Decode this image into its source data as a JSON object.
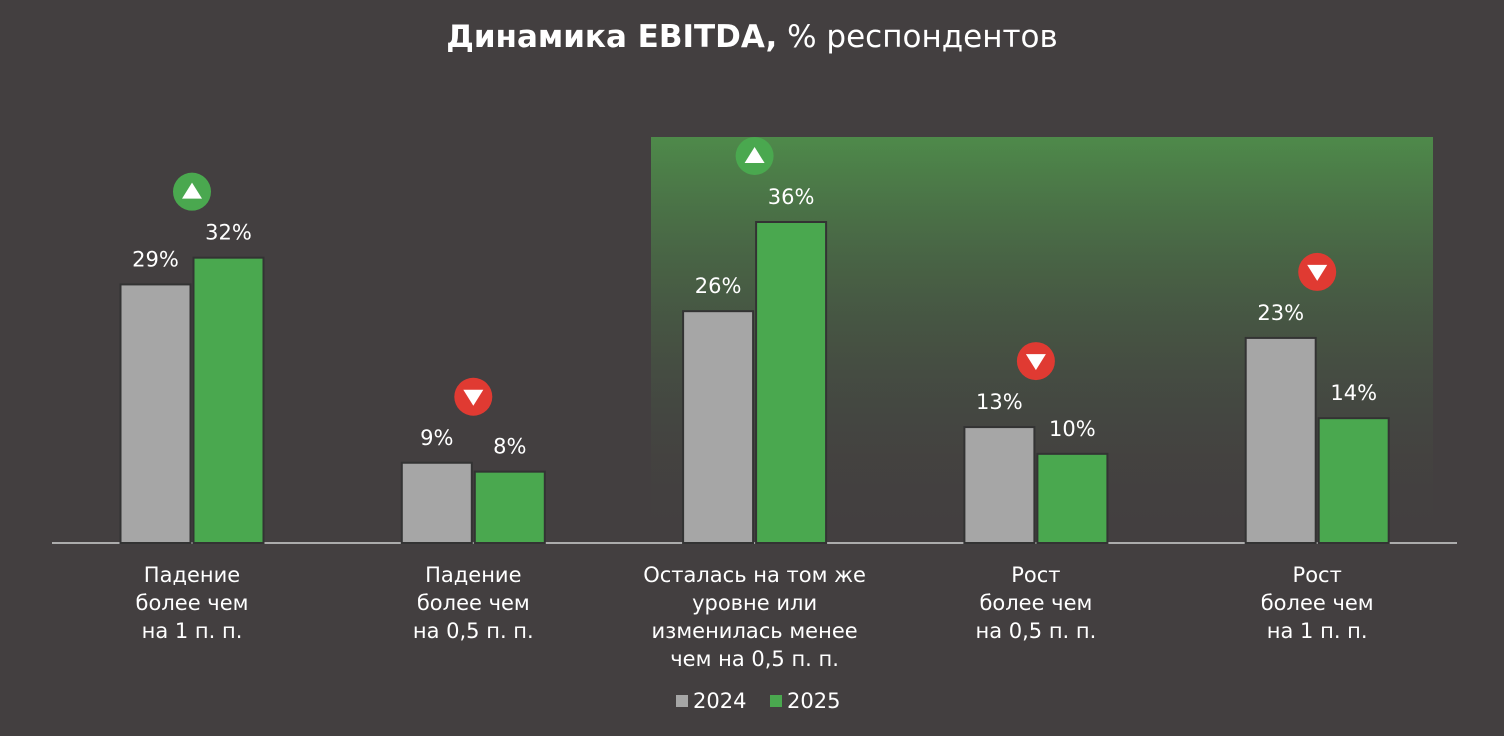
{
  "chart_data": {
    "type": "bar",
    "title": "Динамика EBITDA,",
    "title_unit": "% респондентов",
    "categories": [
      "Падение\nболее чем\nна 1 п. п.",
      "Падение\nболее чем\nна 0,5 п. п.",
      "Осталась на том же\nуровне или\nизменилась менее\nчем на 0,5 п. п.",
      "Рост\nболее чем\nна 0,5 п. п.",
      "Рост\nболее чем\nна 1 п. п."
    ],
    "series": [
      {
        "name": "2024",
        "color": "#a6a6a6",
        "values": [
          29,
          9,
          26,
          13,
          23
        ],
        "value_labels": [
          "29%",
          "9%",
          "26%",
          "13%",
          "23%"
        ]
      },
      {
        "name": "2025",
        "color": "#4aa84f",
        "values": [
          32,
          8,
          36,
          10,
          14
        ],
        "value_labels": [
          "32%",
          "8%",
          "36%",
          "10%",
          "14%"
        ]
      }
    ],
    "legend": "bottom"
  }
}
